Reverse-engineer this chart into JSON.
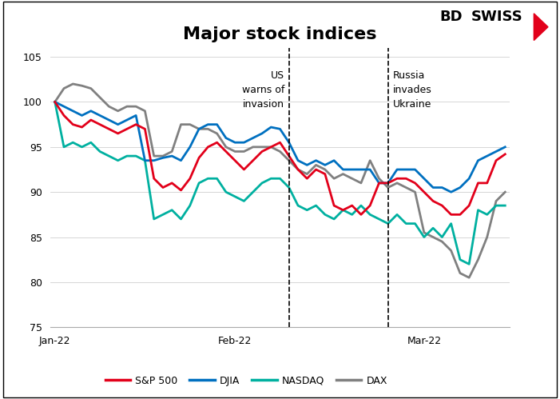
{
  "title": "Major stock indices",
  "title_fontsize": 16,
  "ylim": [
    75,
    106
  ],
  "yticks": [
    75,
    80,
    85,
    90,
    95,
    100,
    105
  ],
  "background_color": "#ffffff",
  "series": {
    "SP500": {
      "color": "#e2001a",
      "label": "S&P 500",
      "values": [
        100,
        98.5,
        97.5,
        97.2,
        98.0,
        97.5,
        97.0,
        96.5,
        97.0,
        97.5,
        97.0,
        91.5,
        90.5,
        91.0,
        90.2,
        91.5,
        93.8,
        95.0,
        95.5,
        94.5,
        93.5,
        92.5,
        93.5,
        94.5,
        95.0,
        95.5,
        94.0,
        92.5,
        91.5,
        92.5,
        92.0,
        88.5,
        88.0,
        88.5,
        87.5,
        88.5,
        91.0,
        91.0,
        91.5,
        91.5,
        91.0,
        90.0,
        89.0,
        88.5,
        87.5,
        87.5,
        88.5,
        91.0,
        91.0,
        93.5,
        94.2
      ]
    },
    "DJIA": {
      "color": "#0070c0",
      "label": "DJIA",
      "values": [
        100,
        99.5,
        99.0,
        98.5,
        99.0,
        98.5,
        98.0,
        97.5,
        98.0,
        98.5,
        93.5,
        93.5,
        93.8,
        94.0,
        93.5,
        95.0,
        97.0,
        97.5,
        97.5,
        96.0,
        95.5,
        95.5,
        96.0,
        96.5,
        97.2,
        97.0,
        95.5,
        93.5,
        93.0,
        93.5,
        93.0,
        93.5,
        92.5,
        92.5,
        92.5,
        92.5,
        91.0,
        91.0,
        92.5,
        92.5,
        92.5,
        91.5,
        90.5,
        90.5,
        90.0,
        90.5,
        91.5,
        93.5,
        94.0,
        94.5,
        95.0
      ]
    },
    "NASDAQ": {
      "color": "#00b0a0",
      "label": "NASDAQ",
      "values": [
        100,
        95.0,
        95.5,
        95.0,
        95.5,
        94.5,
        94.0,
        93.5,
        94.0,
        94.0,
        93.5,
        87.0,
        87.5,
        88.0,
        87.0,
        88.5,
        91.0,
        91.5,
        91.5,
        90.0,
        89.5,
        89.0,
        90.0,
        91.0,
        91.5,
        91.5,
        90.5,
        88.5,
        88.0,
        88.5,
        87.5,
        87.0,
        88.0,
        87.5,
        88.5,
        87.5,
        87.0,
        86.5,
        87.5,
        86.5,
        86.5,
        85.0,
        86.0,
        85.0,
        86.5,
        82.5,
        82.0,
        88.0,
        87.5,
        88.5,
        88.5
      ]
    },
    "DAX": {
      "color": "#808080",
      "label": "DAX",
      "values": [
        100,
        101.5,
        102.0,
        101.8,
        101.5,
        100.5,
        99.5,
        99.0,
        99.5,
        99.5,
        99.0,
        94.0,
        94.0,
        94.5,
        97.5,
        97.5,
        97.0,
        97.0,
        96.5,
        95.0,
        94.5,
        94.5,
        95.0,
        95.0,
        95.0,
        94.5,
        93.5,
        92.5,
        92.0,
        93.0,
        92.5,
        91.5,
        92.0,
        91.5,
        91.0,
        93.5,
        91.5,
        90.5,
        91.0,
        90.5,
        90.0,
        85.5,
        85.0,
        84.5,
        83.5,
        81.0,
        80.5,
        82.5,
        85.0,
        89.0,
        90.0
      ]
    }
  },
  "vline1_x": 26,
  "vline1_label": "US\nwarns of\ninvasion",
  "vline2_x": 37,
  "vline2_label": "Russia\ninvades\nUkraine",
  "xtick_positions": [
    0,
    20,
    41
  ],
  "xtick_labels": [
    "Jan-22",
    "Feb-22",
    "Mar-22"
  ],
  "legend_items": [
    {
      "label": "S&P 500",
      "color": "#e2001a"
    },
    {
      "label": "DJIA",
      "color": "#0070c0"
    },
    {
      "label": "NASDAQ",
      "color": "#00b0a0"
    },
    {
      "label": "DAX",
      "color": "#808080"
    }
  ]
}
